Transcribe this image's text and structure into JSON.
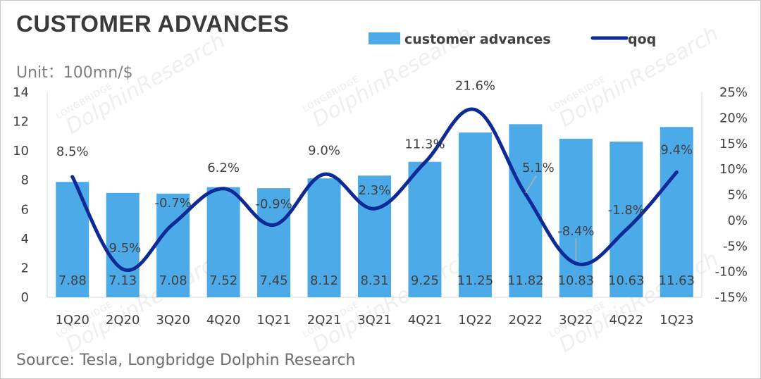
{
  "header": {
    "title": "CUSTOMER ADVANCES",
    "unit": "Unit：100mn/$"
  },
  "footer": {
    "source": "Source: Tesla, Longbridge Dolphin Research"
  },
  "watermark": {
    "brand": "DolphinResearch",
    "sub": "LONGBRIDGE"
  },
  "colors": {
    "bar": "#4daae8",
    "line": "#0d2a96",
    "leader": "#b0b0b0",
    "axis": "#d9d9d9"
  },
  "chart_data": {
    "type": "bar",
    "title": "CUSTOMER ADVANCES",
    "categories": [
      "1Q20",
      "2Q20",
      "3Q20",
      "4Q20",
      "1Q21",
      "2Q21",
      "3Q21",
      "4Q21",
      "1Q22",
      "2Q22",
      "3Q22",
      "4Q22",
      "1Q23"
    ],
    "series": [
      {
        "name": "customer advances",
        "type": "bar",
        "axis": "left",
        "values": [
          7.88,
          7.13,
          7.08,
          7.52,
          7.45,
          8.12,
          8.31,
          9.25,
          11.25,
          11.82,
          10.83,
          10.63,
          11.63
        ],
        "labels": [
          "7.88",
          "7.13",
          "7.08",
          "7.52",
          "7.45",
          "8.12",
          "8.31",
          "9.25",
          "11.25",
          "11.82",
          "10.83",
          "10.63",
          "11.63"
        ]
      },
      {
        "name": "qoq",
        "type": "line",
        "axis": "right",
        "values": [
          8.5,
          -9.5,
          -0.7,
          6.2,
          -0.9,
          9.0,
          2.3,
          11.3,
          21.6,
          5.1,
          -8.4,
          -1.8,
          9.4
        ],
        "labels": [
          "8.5%",
          "-9.5%",
          "-0.7%",
          "6.2%",
          "-0.9%",
          "9.0%",
          "2.3%",
          "11.3%",
          "21.6%",
          "5.1%",
          "-8.4%",
          "-1.8%",
          "9.4%"
        ]
      }
    ],
    "y_left": {
      "min": 0,
      "max": 14,
      "ticks": [
        "0",
        "2",
        "4",
        "6",
        "8",
        "10",
        "12",
        "14"
      ]
    },
    "y_right": {
      "min": -15,
      "max": 25,
      "ticks": [
        "-15%",
        "-10%",
        "-5%",
        "0%",
        "5%",
        "10%",
        "15%",
        "20%",
        "25%"
      ]
    },
    "legend": {
      "placement": "top-right",
      "entries": [
        "customer advances",
        "qoq"
      ]
    },
    "grid": false
  }
}
